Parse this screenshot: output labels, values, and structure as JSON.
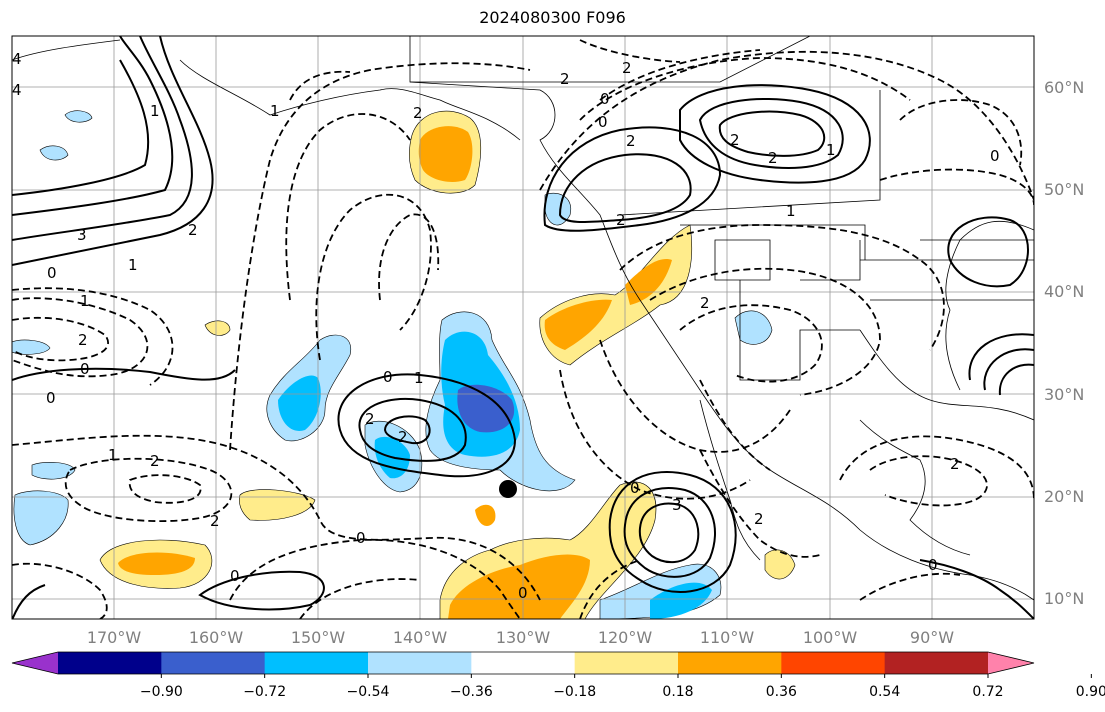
{
  "title": "2024080300 F096",
  "lat_labels": [
    "60°N",
    "50°N",
    "40°N",
    "30°N",
    "20°N",
    "10°N"
  ],
  "lon_labels": [
    "170°W",
    "160°W",
    "150°W",
    "140°W",
    "130°W",
    "120°W",
    "110°W",
    "100°W",
    "90°W"
  ],
  "colorbar": {
    "ticks": [
      "−0.90",
      "−0.72",
      "−0.54",
      "−0.36",
      "−0.18",
      "0.18",
      "0.36",
      "0.54",
      "0.72",
      "0.90"
    ],
    "colors": [
      "#9932cc",
      "#00008b",
      "#3a5fcd",
      "#00bfff",
      "#b0e2ff",
      "#ffffff",
      "#ffec8b",
      "#ffa500",
      "#ff4500",
      "#b22222",
      "#ff82ab"
    ]
  },
  "contour_labels": [
    "4",
    "4",
    "0",
    "0",
    "2",
    "3",
    "1",
    "2",
    "2",
    "0",
    "1",
    "2",
    "1",
    "1",
    "2",
    "0",
    "2",
    "2",
    "2",
    "2",
    "0",
    "3",
    "2",
    "1",
    "0",
    "0",
    "2",
    "2",
    "0",
    "1",
    "2",
    "1",
    "2",
    "0",
    "0",
    "2",
    "0",
    "2",
    "1",
    "0"
  ]
}
